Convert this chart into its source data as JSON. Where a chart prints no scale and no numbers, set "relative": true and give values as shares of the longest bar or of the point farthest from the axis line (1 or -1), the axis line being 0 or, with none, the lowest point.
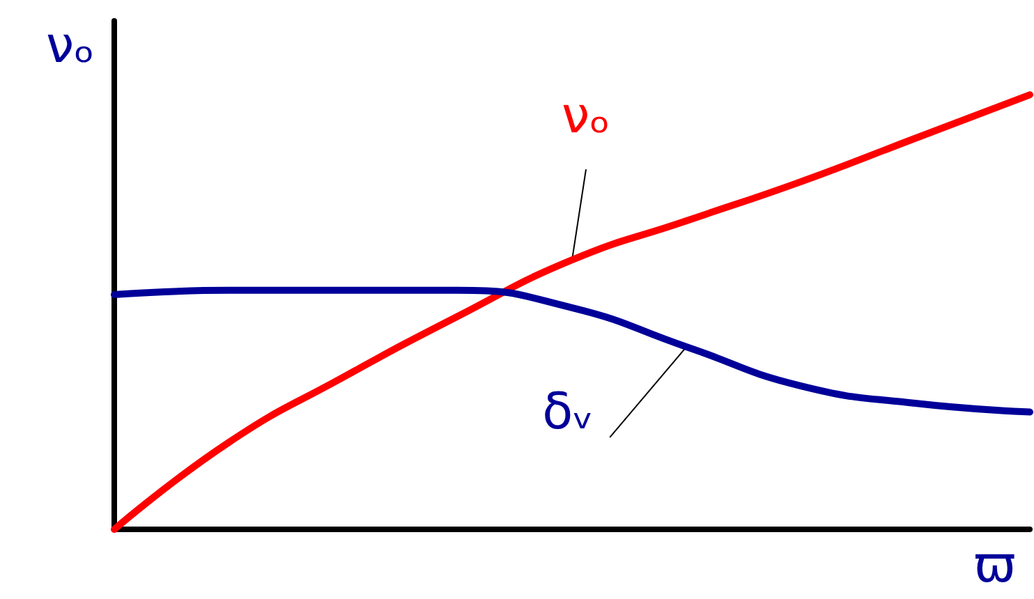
{
  "chart_data": {
    "type": "line",
    "relative": true,
    "xlabel": "ϖ",
    "ylabel": "νₒ",
    "categories": [
      null,
      null,
      null,
      null,
      null,
      null,
      null,
      null,
      null
    ],
    "series": [
      {
        "name": "νₒ",
        "color": "#ff0000",
        "values": [
          0,
          0.2,
          0.35,
          0.49,
          0.62,
          0.71,
          0.8,
          0.9,
          1
        ]
      },
      {
        "name": "δᵥ",
        "color": "#000099",
        "values": [
          0.54,
          0.55,
          0.55,
          0.55,
          0.51,
          0.42,
          0.33,
          0.29,
          0.27
        ]
      }
    ],
    "grid": false,
    "legend": false,
    "marker": "none",
    "line_style": "solid"
  }
}
